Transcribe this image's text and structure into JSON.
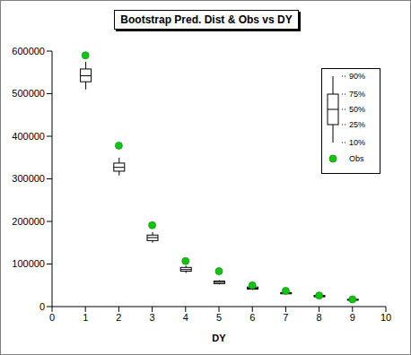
{
  "chart_data": {
    "type": "box",
    "title": "Bootstrap Pred. Dist & Obs vs DY",
    "xlabel": "DY",
    "x": [
      1,
      2,
      3,
      4,
      5,
      6,
      7,
      8,
      9
    ],
    "xlim": [
      0,
      10
    ],
    "xticks": [
      0,
      1,
      2,
      3,
      4,
      5,
      6,
      7,
      8,
      9,
      10
    ],
    "ylim": [
      0,
      600000
    ],
    "yticks": [
      0,
      100000,
      200000,
      300000,
      400000,
      500000,
      600000
    ],
    "grid": false,
    "legend": "upper right",
    "series": [
      {
        "name": "90%",
        "type": "box",
        "color": "#000000",
        "values": [
          575000,
          350000,
          175000,
          96000,
          62000,
          48000,
          35000,
          27000,
          18000
        ]
      },
      {
        "name": "75%",
        "type": "box",
        "color": "#000000",
        "values": [
          558000,
          337000,
          168000,
          92000,
          60000,
          46000,
          33000,
          26000,
          17000
        ]
      },
      {
        "name": "50%",
        "type": "box",
        "color": "#000000",
        "values": [
          542000,
          327000,
          162000,
          87000,
          57000,
          43000,
          32000,
          24500,
          16000
        ]
      },
      {
        "name": "25%",
        "type": "box",
        "color": "#000000",
        "values": [
          528000,
          318000,
          155000,
          83000,
          54000,
          41000,
          30000,
          23000,
          15000
        ]
      },
      {
        "name": "10%",
        "type": "box",
        "color": "#000000",
        "values": [
          510000,
          308000,
          150000,
          79000,
          52000,
          39000,
          29000,
          22000,
          14000
        ]
      },
      {
        "name": "Obs",
        "type": "scatter",
        "marker": "circle",
        "color": "#00cc00",
        "values": [
          590000,
          378000,
          191000,
          107000,
          83000,
          50000,
          37000,
          26000,
          17000
        ]
      }
    ]
  }
}
